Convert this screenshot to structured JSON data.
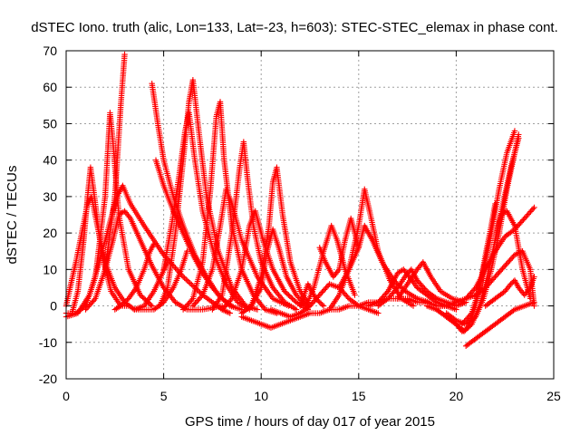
{
  "chart_data": {
    "type": "scatter",
    "title": "dSTEC Iono. truth (alic, Lon=133, Lat=-23, h=603): STEC-STEC_elemax in phase cont.",
    "xlabel": "GPS time / hours of day 017 of year 2015",
    "ylabel": "dSTEC  / TECUs",
    "xlim": [
      0,
      25
    ],
    "ylim": [
      -20,
      70
    ],
    "xticks": [
      "0",
      "5",
      "10",
      "15",
      "20",
      "25"
    ],
    "yticks": [
      "-20",
      "-10",
      "0",
      "10",
      "20",
      "30",
      "40",
      "50",
      "60",
      "70"
    ],
    "grid": true,
    "marker": "+",
    "color": "#ff0000",
    "series": [
      {
        "x": [
          0.0,
          0.3,
          0.6,
          0.9,
          1.1,
          1.25,
          1.45,
          1.8,
          2.3,
          2.8,
          3.2
        ],
        "y": [
          -2,
          -2,
          4,
          18,
          30,
          38,
          30,
          15,
          4,
          0,
          0
        ]
      },
      {
        "x": [
          0.0,
          0.2,
          0.5,
          0.8,
          1.1,
          1.3,
          1.6,
          2.0,
          2.5,
          3.0,
          3.5,
          4.0,
          4.5,
          5.2
        ],
        "y": [
          0,
          5,
          12,
          20,
          28,
          30,
          22,
          12,
          5,
          1,
          -1,
          0,
          4,
          12
        ]
      },
      {
        "x": [
          0.0,
          0.6,
          1.2,
          1.7,
          2.2,
          2.6,
          2.9,
          3.3,
          4.0,
          5.0,
          6.0,
          7.0,
          8.0,
          8.4
        ],
        "y": [
          -3,
          -2,
          3,
          12,
          22,
          30,
          33,
          28,
          22,
          14,
          8,
          3,
          -1,
          -2
        ]
      },
      {
        "x": [
          0.5,
          1.0,
          1.5,
          2.0,
          2.25,
          2.4,
          2.7,
          3.2,
          3.8,
          4.4
        ],
        "y": [
          -2,
          0,
          8,
          30,
          53,
          45,
          25,
          10,
          3,
          0
        ]
      },
      {
        "x": [
          1.0,
          1.5,
          2.0,
          2.5,
          2.8,
          3.0
        ],
        "y": [
          -1,
          2,
          10,
          30,
          55,
          69
        ]
      },
      {
        "x": [
          2.0,
          2.4,
          2.7,
          3.0,
          3.3,
          3.8,
          4.4,
          5.0,
          5.6,
          6.2,
          7.0,
          8.0
        ],
        "y": [
          10,
          18,
          25,
          26,
          24,
          18,
          11,
          5,
          1,
          -1,
          -1,
          0
        ]
      },
      {
        "x": [
          2.5,
          2.8,
          3.2,
          3.6,
          4.0,
          4.3,
          4.5
        ],
        "y": [
          -1,
          0,
          2,
          5,
          10,
          15,
          17
        ]
      },
      {
        "x": [
          4.4,
          4.7,
          5.0,
          5.5,
          6.0,
          6.6,
          7.2,
          7.8,
          8.4,
          9.0
        ],
        "y": [
          61,
          50,
          40,
          30,
          22,
          14,
          8,
          3,
          0,
          -1
        ]
      },
      {
        "x": [
          4.6,
          5.0,
          5.5,
          6.0,
          6.5,
          7.0,
          7.5,
          8.0,
          8.5
        ],
        "y": [
          40,
          33,
          26,
          20,
          14,
          9,
          5,
          2,
          0
        ]
      },
      {
        "x": [
          3.5,
          4.0,
          4.5,
          5.0,
          5.5,
          5.9,
          6.2
        ],
        "y": [
          -1,
          -1,
          -1,
          1,
          5,
          10,
          15
        ]
      },
      {
        "x": [
          5.0,
          5.4,
          5.8,
          6.1,
          6.3,
          6.6,
          7.0,
          7.6,
          8.2,
          8.8,
          9.4
        ],
        "y": [
          10,
          22,
          36,
          48,
          53,
          40,
          26,
          14,
          6,
          1,
          -1
        ]
      },
      {
        "x": [
          4.8,
          5.2,
          5.6,
          6.0,
          6.3,
          6.5,
          6.8,
          7.2,
          7.8,
          8.5,
          9.2,
          9.8
        ],
        "y": [
          0,
          5,
          20,
          40,
          56,
          62,
          48,
          30,
          15,
          5,
          0,
          -1
        ]
      },
      {
        "x": [
          6.0,
          6.5,
          7.0,
          7.4,
          7.7,
          7.9,
          8.1,
          8.5,
          9.0,
          9.6,
          10.2,
          10.8
        ],
        "y": [
          -1,
          2,
          12,
          32,
          52,
          56,
          40,
          22,
          10,
          3,
          -1,
          -2
        ]
      },
      {
        "x": [
          6.5,
          7.0,
          7.5,
          7.9,
          8.2,
          8.5,
          9.0,
          9.8,
          10.6,
          11.4
        ],
        "y": [
          0,
          3,
          10,
          22,
          32,
          28,
          18,
          8,
          2,
          0
        ]
      },
      {
        "x": [
          7.5,
          8.0,
          8.5,
          8.9,
          9.1,
          9.3,
          9.6,
          10.0,
          10.6,
          11.2,
          11.8
        ],
        "y": [
          -1,
          3,
          20,
          38,
          45,
          35,
          22,
          12,
          5,
          1,
          -1
        ]
      },
      {
        "x": [
          8.0,
          8.5,
          9.0,
          9.4,
          9.7,
          10.1,
          10.6,
          11.2,
          11.8,
          12.4
        ],
        "y": [
          -1,
          2,
          10,
          22,
          26,
          18,
          10,
          4,
          1,
          -1
        ]
      },
      {
        "x": [
          9.0,
          9.5,
          10.0,
          10.4,
          10.6,
          10.8,
          11.1,
          11.5,
          12.0,
          12.5
        ],
        "y": [
          -2,
          0,
          8,
          22,
          34,
          38,
          25,
          12,
          4,
          0
        ]
      },
      {
        "x": [
          9.5,
          10.0,
          10.3,
          10.6,
          10.9,
          11.3,
          11.8,
          12.3
        ],
        "y": [
          0,
          5,
          15,
          21,
          16,
          8,
          3,
          0
        ]
      },
      {
        "x": [
          9.0,
          9.5,
          10.0,
          10.5,
          11.0,
          11.5,
          12.0,
          12.5,
          13.0,
          13.5,
          14.0,
          14.5,
          15.0,
          15.5,
          16.0,
          16.5,
          17.0,
          17.5,
          18.0,
          18.5,
          19.0,
          19.5,
          20.0
        ],
        "y": [
          -3,
          -4,
          -5,
          -6,
          -5,
          -4,
          -3,
          -2,
          -2,
          -1,
          -1,
          0,
          0,
          1,
          1,
          2,
          2,
          2,
          1,
          1,
          0,
          0,
          -1
        ]
      },
      {
        "x": [
          10.5,
          11.0,
          11.5,
          12.0,
          12.5,
          13.0,
          13.5,
          14.0,
          14.5,
          15.0,
          15.5,
          16.0
        ],
        "y": [
          -1,
          -2,
          -3,
          -2,
          0,
          3,
          6,
          5,
          2,
          0,
          -1,
          -2
        ]
      },
      {
        "x": [
          12.0,
          12.2,
          12.4,
          12.8,
          13.2
        ],
        "y": [
          0,
          3,
          6,
          2,
          0
        ]
      },
      {
        "x": [
          12.3,
          12.7,
          13.2,
          13.6,
          13.9,
          14.3,
          14.8
        ],
        "y": [
          0,
          5,
          15,
          22,
          18,
          10,
          3
        ]
      },
      {
        "x": [
          13.0,
          13.3,
          13.7,
          14.0,
          14.3,
          14.6,
          15.0
        ],
        "y": [
          16,
          12,
          8,
          10,
          18,
          24,
          16
        ]
      },
      {
        "x": [
          13.5,
          14.0,
          14.5,
          15.0,
          15.3,
          15.6,
          16.0,
          16.6,
          17.2,
          17.8
        ],
        "y": [
          -1,
          3,
          10,
          22,
          32,
          25,
          15,
          7,
          2,
          0
        ]
      },
      {
        "x": [
          14.0,
          14.5,
          15.0,
          15.3,
          15.7,
          16.2,
          16.8,
          17.4,
          18.0,
          18.6
        ],
        "y": [
          5,
          10,
          16,
          22,
          18,
          12,
          7,
          4,
          2,
          1
        ]
      },
      {
        "x": [
          15.5,
          16.0,
          16.5,
          17.0,
          17.3,
          17.6,
          18.0,
          18.5,
          19.0,
          19.5
        ],
        "y": [
          0,
          1,
          4,
          9,
          10,
          8,
          5,
          3,
          1,
          0
        ]
      },
      {
        "x": [
          16.0,
          16.5,
          17.0,
          17.5,
          17.7,
          18.0,
          18.5,
          19.0,
          19.5,
          20.0,
          20.5
        ],
        "y": [
          0,
          2,
          5,
          9,
          10,
          7,
          4,
          2,
          1,
          0,
          1
        ]
      },
      {
        "x": [
          17.0,
          17.5,
          18.0,
          18.3,
          18.7,
          19.2,
          19.8,
          20.4
        ],
        "y": [
          2,
          6,
          10,
          12,
          8,
          4,
          2,
          1
        ]
      },
      {
        "x": [
          18.5,
          19.0,
          19.5,
          20.0,
          20.3,
          20.6,
          21.0,
          21.4,
          21.8,
          22.2,
          22.6,
          23.0
        ],
        "y": [
          0,
          -1,
          -3,
          -5,
          -7,
          -6,
          0,
          10,
          20,
          32,
          42,
          48
        ]
      },
      {
        "x": [
          19.0,
          19.5,
          20.0,
          20.4,
          20.8,
          21.2,
          21.6,
          22.0,
          22.4,
          22.8,
          23.2
        ],
        "y": [
          -1,
          -3,
          -5,
          -7,
          -5,
          0,
          8,
          18,
          28,
          38,
          46
        ]
      },
      {
        "x": [
          19.5,
          20.0,
          20.5,
          21.0,
          21.4,
          21.8,
          22.2,
          22.6,
          23.0,
          23.2
        ],
        "y": [
          -2,
          -4,
          -5,
          -3,
          2,
          10,
          20,
          32,
          42,
          47
        ]
      },
      {
        "x": [
          19.0,
          19.5,
          20.0,
          20.5,
          21.0,
          21.5,
          22.0,
          22.5,
          23.0,
          23.4,
          23.8,
          24.0
        ],
        "y": [
          0,
          0,
          1,
          2,
          3,
          5,
          8,
          11,
          14,
          15,
          10,
          0
        ]
      },
      {
        "x": [
          20.3,
          20.8,
          21.2,
          21.5,
          21.8,
          22.0
        ],
        "y": [
          -5,
          -2,
          5,
          14,
          22,
          28
        ]
      },
      {
        "x": [
          20.5,
          21.0,
          21.5,
          22.0,
          22.5,
          23.0,
          23.5,
          24.0
        ],
        "y": [
          2,
          5,
          10,
          15,
          19,
          21,
          24,
          27
        ]
      },
      {
        "x": [
          20.5,
          21.0,
          21.5,
          22.0,
          22.5,
          23.0,
          23.5,
          24.0
        ],
        "y": [
          -11,
          -9,
          -7,
          -5,
          -3,
          -1,
          0,
          1
        ]
      },
      {
        "x": [
          21.5,
          22.0,
          22.5,
          22.8,
          23.0,
          23.2,
          23.5,
          23.8,
          24.0
        ],
        "y": [
          0,
          2,
          4,
          6,
          7,
          5,
          3,
          5,
          8
        ]
      },
      {
        "x": [
          22.0,
          22.3,
          22.6,
          23.0,
          23.4,
          23.8
        ],
        "y": [
          18,
          25,
          26,
          22,
          10,
          2
        ]
      }
    ]
  }
}
